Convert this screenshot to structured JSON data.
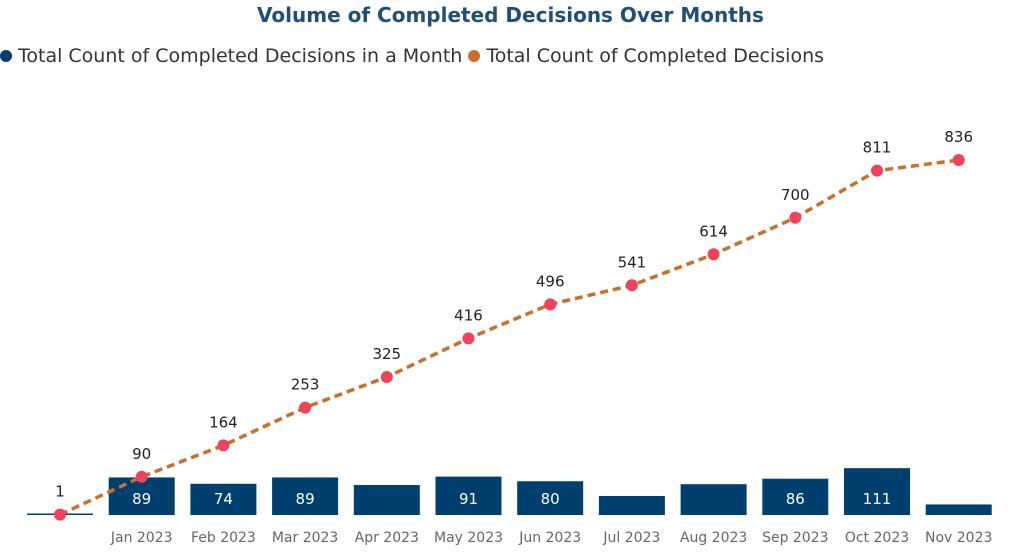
{
  "chart_data": {
    "type": "bar",
    "title": "Volume of Completed Decisions Over Months",
    "xlabel": "",
    "ylabel": "",
    "legend_position": "top-left",
    "categories": [
      "",
      "Jan 2023",
      "Feb 2023",
      "Mar 2023",
      "Apr 2023",
      "May 2023",
      "Jun 2023",
      "Jul 2023",
      "Aug 2023",
      "Sep 2023",
      "Oct 2023",
      "Nov 2023"
    ],
    "series": [
      {
        "name": "Total Count of Completed Decisions in a Month",
        "type": "bar",
        "color": "#003f6e",
        "values": [
          1,
          89,
          74,
          89,
          71,
          91,
          80,
          45,
          73,
          86,
          111,
          25
        ],
        "labels": [
          "",
          "89",
          "74",
          "89",
          "",
          "91",
          "80",
          "",
          "",
          "86",
          "111",
          ""
        ]
      },
      {
        "name": "Total Count of Completed Decisions",
        "type": "line",
        "line_style": "dashed",
        "color": "#c8702a",
        "marker_color": "#f2415a",
        "values": [
          1,
          90,
          164,
          253,
          325,
          416,
          496,
          541,
          614,
          700,
          811,
          836
        ],
        "labels": [
          "1",
          "90",
          "164",
          "253",
          "325",
          "416",
          "496",
          "541",
          "614",
          "700",
          "811",
          "836"
        ]
      }
    ],
    "grid": false
  }
}
